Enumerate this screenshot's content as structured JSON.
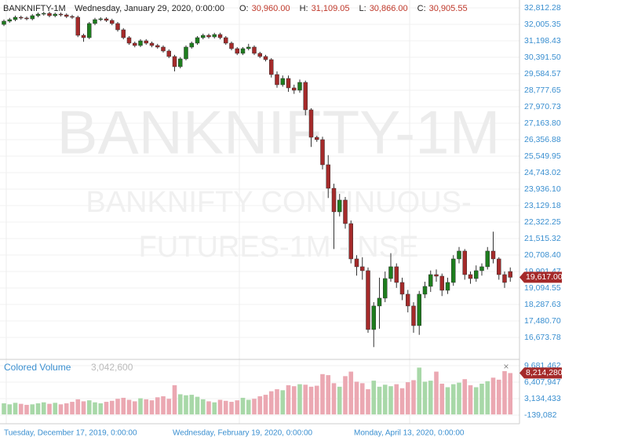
{
  "chart_data": {
    "type": "candlestick",
    "symbol": "BANKNIFTY-1M",
    "header_date": "Wednesday, January 29, 2020, 0:00:00",
    "header_fields": [
      {
        "key": "O:",
        "value": "30,960.00"
      },
      {
        "key": "H:",
        "value": "31,109.05"
      },
      {
        "key": "L:",
        "value": "30,866.00"
      },
      {
        "key": "C:",
        "value": "30,905.55"
      }
    ],
    "watermark": [
      "BANKNIFTY-1M",
      "BANKNIFTY CONTINUOUS-",
      "FUTURES-1M - NSE"
    ],
    "x_labels": [
      "Tuesday, December 17, 2019, 0:00:00",
      "Wednesday, February 19, 2020, 0:00:00",
      "Monday, April 13, 2020, 0:00:00"
    ],
    "up_color": "#1e7d1e",
    "down_color": "#a52a2a",
    "volume_up_color": "#a8d8a8",
    "volume_down_color": "#eba8b2",
    "grid": true,
    "open": [
      32000,
      32159,
      32236,
      32351,
      32313,
      32274,
      32428,
      32505,
      32543,
      32428,
      32505,
      32466,
      32390,
      32351,
      31467,
      31352,
      32044,
      32236,
      32274,
      32197,
      32044,
      31737,
      31352,
      31083,
      30968,
      31198,
      31083,
      30968,
      30891,
      30699,
      30430,
      29931,
      30315,
      30891,
      31083,
      31352,
      31467,
      31390,
      31506,
      31352,
      31083,
      30814,
      30584,
      30814,
      30891,
      30584,
      30430,
      30276,
      29546,
      29047,
      29354,
      28893,
      28778,
      29162,
      27818,
      26473,
      26358,
      25128,
      23976,
      22823,
      23399,
      22247,
      20518,
      20134,
      19942,
      17060,
      18213,
      18597,
      19557,
      20134,
      19365,
      18789,
      18213,
      17252,
      18789,
      19173,
      19749,
      19672,
      18981,
      19365,
      20518,
      20902,
      19749,
      19557,
      19942,
      20134,
      20902,
      20518,
      19749,
      19900
    ],
    "high": [
      32240,
      32320,
      32430,
      32430,
      32390,
      32510,
      32580,
      32620,
      32620,
      32580,
      32580,
      32540,
      32470,
      32430,
      31550,
      32120,
      32320,
      32350,
      32350,
      32280,
      32120,
      31820,
      31430,
      31160,
      31280,
      31280,
      31160,
      31050,
      30970,
      30780,
      30510,
      30400,
      30970,
      31160,
      31430,
      31550,
      31550,
      31590,
      31590,
      31430,
      31160,
      30890,
      30890,
      31050,
      30970,
      30660,
      30510,
      30350,
      29700,
      29500,
      29500,
      29050,
      29300,
      29250,
      27900,
      26550,
      26500,
      25600,
      24200,
      23700,
      23550,
      22400,
      20700,
      20600,
      20100,
      18400,
      19600,
      19900,
      20800,
      20300,
      19600,
      19000,
      18400,
      18950,
      19400,
      19950,
      20000,
      19800,
      19600,
      20700,
      21100,
      21000,
      19900,
      20200,
      20300,
      21100,
      21850,
      20600,
      19900,
      20100
    ],
    "low": [
      31920,
      32080,
      32160,
      32230,
      32200,
      32200,
      32350,
      32430,
      32350,
      32350,
      32390,
      32310,
      32270,
      31380,
      31150,
      31280,
      31960,
      32160,
      32120,
      31960,
      31650,
      31270,
      31000,
      30880,
      30890,
      31000,
      30880,
      30810,
      30620,
      30350,
      29700,
      29850,
      30240,
      30810,
      31000,
      31270,
      31310,
      31310,
      31270,
      31000,
      30730,
      30500,
      30500,
      30730,
      30500,
      30350,
      30190,
      29400,
      28900,
      28950,
      28700,
      28600,
      28650,
      27550,
      26000,
      26250,
      24900,
      23500,
      21000,
      22600,
      22000,
      20300,
      19700,
      19500,
      16900,
      16200,
      17100,
      18400,
      19400,
      19100,
      18500,
      17900,
      16900,
      16800,
      18600,
      18900,
      19400,
      18700,
      18800,
      19200,
      20300,
      19500,
      19300,
      19400,
      19700,
      20000,
      20300,
      19500,
      19100,
      19400
    ],
    "close": [
      32159,
      32236,
      32351,
      32313,
      32274,
      32428,
      32505,
      32543,
      32428,
      32505,
      32466,
      32390,
      32351,
      31467,
      31352,
      32044,
      32236,
      32274,
      32197,
      32044,
      31737,
      31352,
      31083,
      30968,
      31198,
      31083,
      30968,
      30891,
      30699,
      30430,
      29931,
      30315,
      30891,
      31083,
      31352,
      31467,
      31390,
      31506,
      31352,
      31083,
      30814,
      30584,
      30814,
      30891,
      30584,
      30430,
      30276,
      29546,
      29047,
      29354,
      28893,
      28778,
      29162,
      27818,
      26473,
      26358,
      25128,
      23976,
      22823,
      23399,
      22247,
      20518,
      20134,
      19942,
      17060,
      18213,
      18597,
      19557,
      20134,
      19365,
      18789,
      18213,
      17252,
      18789,
      19173,
      19749,
      19672,
      18981,
      19365,
      20518,
      20902,
      19749,
      19557,
      19942,
      20134,
      20902,
      20518,
      19749,
      19365,
      19617
    ],
    "last_close_label": "19,617.00",
    "ylim": [
      15636,
      33196
    ],
    "yticks": [
      {
        "value": 32812.28,
        "label": "32,812.28"
      },
      {
        "value": 32005.35,
        "label": "32,005.35"
      },
      {
        "value": 31198.43,
        "label": "31,198.43"
      },
      {
        "value": 30391.5,
        "label": "30,391.50"
      },
      {
        "value": 29584.57,
        "label": "29,584.57"
      },
      {
        "value": 28777.65,
        "label": "28,777.65"
      },
      {
        "value": 27970.73,
        "label": "27,970.73"
      },
      {
        "value": 27163.8,
        "label": "27,163.80"
      },
      {
        "value": 26356.88,
        "label": "26,356.88"
      },
      {
        "value": 25549.95,
        "label": "25,549.95"
      },
      {
        "value": 24743.02,
        "label": "24,743.02"
      },
      {
        "value": 23936.1,
        "label": "23,936.10"
      },
      {
        "value": 23129.18,
        "label": "23,129.18"
      },
      {
        "value": 22322.25,
        "label": "22,322.25"
      },
      {
        "value": 21515.32,
        "label": "21,515.32"
      },
      {
        "value": 20708.4,
        "label": "20,708.40"
      },
      {
        "value": 19901.47,
        "label": "19,901.47"
      },
      {
        "value": 19094.55,
        "label": "19,094.55"
      },
      {
        "value": 18287.63,
        "label": "18,287.63"
      },
      {
        "value": 17480.7,
        "label": "17,480.70"
      },
      {
        "value": 16673.78,
        "label": "16,673.78"
      }
    ],
    "volume_title": "Colored Volume",
    "volume_legend_value": "3,042,600",
    "volume": [
      2200000,
      2000000,
      2300000,
      2100000,
      1900000,
      2000000,
      2200000,
      2400000,
      2100000,
      2300000,
      2000000,
      2200000,
      2500000,
      3000000,
      2600000,
      2800000,
      2400000,
      2200000,
      2500000,
      2700000,
      3100000,
      3300000,
      2900000,
      2600000,
      3200000,
      3000000,
      2800000,
      3400000,
      3600000,
      3100000,
      5800000,
      4000000,
      3800000,
      3900000,
      3500000,
      3000000,
      2600000,
      2400000,
      2900000,
      2700000,
      2500000,
      2800000,
      3300000,
      2900000,
      3100000,
      3600000,
      3900000,
      4600000,
      5000000,
      4800000,
      5800000,
      5600000,
      6000000,
      5900000,
      5500000,
      5700000,
      8000000,
      7800000,
      6200000,
      5500000,
      7600000,
      8500000,
      6500000,
      6200000,
      5000000,
      6700000,
      5500000,
      5900000,
      5600000,
      6000000,
      5200000,
      6400000,
      6800000,
      9300000,
      6500000,
      6700000,
      8500000,
      6100000,
      5400000,
      6000000,
      6300000,
      7000000,
      5800000,
      5400000,
      6100000,
      6600000,
      7300000,
      6900000,
      8600000,
      8214280
    ],
    "last_volume_label": "8,214,280",
    "y2lim": [
      -1386138,
      10616754
    ],
    "y2ticks": [
      {
        "value": 9681462,
        "label": "9,681,462"
      },
      {
        "value": 6407947,
        "label": "6,407,947"
      },
      {
        "value": 3134433,
        "label": "3,134,433"
      },
      {
        "value": -139082,
        "label": "-139,082"
      }
    ]
  }
}
